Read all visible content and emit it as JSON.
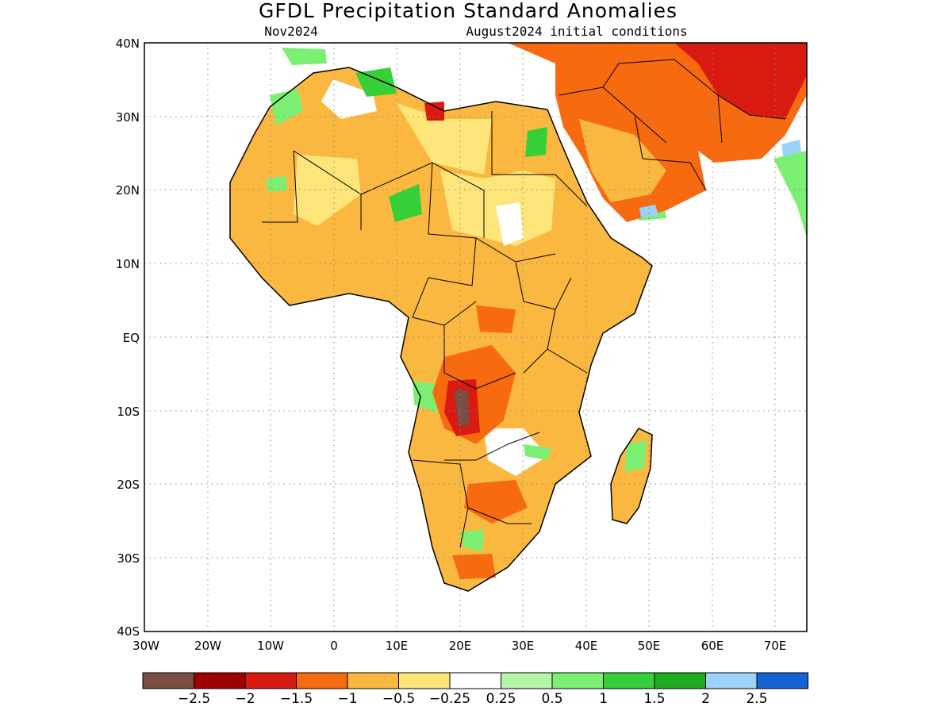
{
  "header": {
    "title": "GFDL Precipitation Standard Anomalies",
    "valid_month": "Nov2024",
    "init": "August2024 initial conditions"
  },
  "map": {
    "lat_labels": [
      "40N",
      "30N",
      "20N",
      "10N",
      "EQ",
      "10S",
      "20S",
      "30S",
      "40S"
    ],
    "lon_labels": [
      "30W",
      "20W",
      "10W",
      "0",
      "10E",
      "20E",
      "30E",
      "40E",
      "50E",
      "60E",
      "70E"
    ],
    "extent": {
      "lon": [
        -30,
        75
      ],
      "lat": [
        -40,
        40
      ]
    },
    "grid": "dotted"
  },
  "colorbar": {
    "colors": [
      "#7b4d43",
      "#a10000",
      "#d81a10",
      "#f76a10",
      "#fbb840",
      "#fde57a",
      "#ffffff",
      "#b3f6a6",
      "#7aef72",
      "#37cf37",
      "#1fab1f",
      "#9ad2fa",
      "#1562d4"
    ],
    "labels": [
      "−2.5",
      "−2",
      "−1.5",
      "−1",
      "−0.5",
      "−0.25",
      "0.25",
      "0.5",
      "1",
      "1.5",
      "2",
      "2.5"
    ]
  }
}
